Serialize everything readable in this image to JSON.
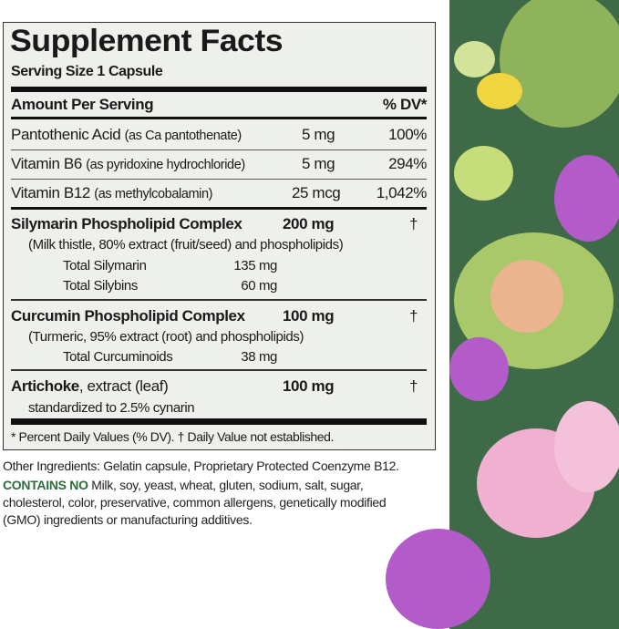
{
  "label": {
    "title": "Supplement Facts",
    "serving_size": "Serving Size 1 Capsule",
    "header_amount": "Amount Per Serving",
    "header_dv": "% DV*",
    "vitamins": [
      {
        "name": "Pantothenic Acid",
        "source": "(as Ca pantothenate)",
        "amount": "5 mg",
        "dv": "100%"
      },
      {
        "name": "Vitamin B6",
        "source": "(as pyridoxine hydrochloride)",
        "amount": "5 mg",
        "dv": "294%"
      },
      {
        "name": "Vitamin B12",
        "source": "(as methylcobalamin)",
        "amount": "25 mcg",
        "dv": "1,042%"
      }
    ],
    "silymarin": {
      "name": "Silymarin Phospholipid Complex",
      "amount": "200 mg",
      "dv": "†",
      "desc": "(Milk thistle, 80% extract (fruit/seed) and phospholipids)",
      "subs": [
        {
          "name": "Total Silymarin",
          "amount": "135 mg"
        },
        {
          "name": "Total Silybins",
          "amount": "60 mg"
        }
      ]
    },
    "curcumin": {
      "name": "Curcumin Phospholipid Complex",
      "amount": "100 mg",
      "dv": "†",
      "desc": "(Turmeric, 95% extract (root) and phospholipids)",
      "subs": [
        {
          "name": "Total Curcuminoids",
          "amount": "38 mg"
        }
      ]
    },
    "artichoke": {
      "name": "Artichoke",
      "name_rest": ", extract (leaf)",
      "amount": "100 mg",
      "dv": "†",
      "desc": "standardized to 2.5% cynarin"
    },
    "footnote": "* Percent Daily Values (% DV). † Daily Value not established."
  },
  "other": {
    "line1": "Other Ingredients: Gelatin capsule, Proprietary Protected Coenzyme B12.",
    "contains_no_label": "CONTAINS NO",
    "line2": " Milk, soy, yeast, wheat, gluten, sodium, salt, sugar,",
    "line3": "cholesterol, color, preservative, common allergens, genetically modified",
    "line4": "(GMO) ingredients or manufacturing additives."
  },
  "colors": {
    "panel_bg": "#eef0ec",
    "accent_green": "#2e6b3a",
    "side_bg": "#3f6a47"
  }
}
